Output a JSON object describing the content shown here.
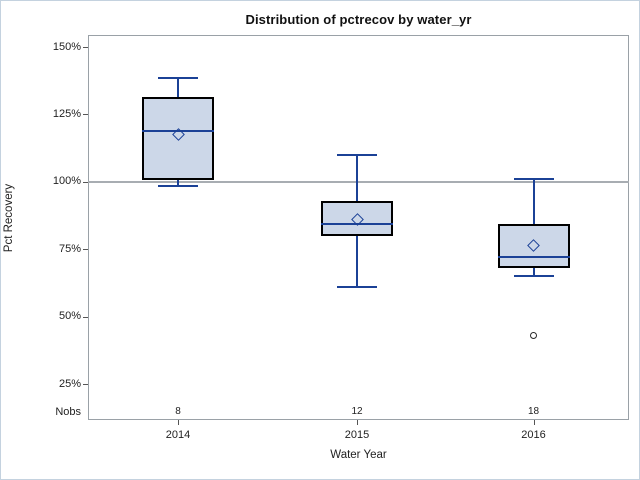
{
  "chart_data": {
    "type": "box",
    "title": "Distribution of pctrecov by water_yr",
    "xlabel": "Water Year",
    "ylabel": "Pct Recovery",
    "nobs_label": "Nobs",
    "categories": [
      "2014",
      "2015",
      "2016"
    ],
    "nobs": [
      "8",
      "12",
      "18"
    ],
    "y_ticks": [
      25,
      50,
      75,
      100,
      125,
      150
    ],
    "y_tick_labels": [
      "25%",
      "50%",
      "75%",
      "100%",
      "125%",
      "150%"
    ],
    "ylim": [
      12,
      155
    ],
    "grid": false,
    "legend": "none",
    "reference_line": 100,
    "series": [
      {
        "category": "2014",
        "n": 8,
        "whisker_low": 98.5,
        "q1": 100.5,
        "median": 119,
        "q3": 131.5,
        "whisker_high": 138.5,
        "mean": 117.5,
        "outliers": []
      },
      {
        "category": "2015",
        "n": 12,
        "whisker_low": 61,
        "q1": 80,
        "median": 84.5,
        "q3": 93,
        "whisker_high": 110,
        "mean": 86,
        "outliers": []
      },
      {
        "category": "2016",
        "n": 18,
        "whisker_low": 65,
        "q1": 68,
        "median": 72,
        "q3": 84.5,
        "whisker_high": 101,
        "mean": 76.5,
        "outliers": [
          43
        ]
      }
    ],
    "colors": {
      "box_fill": "#ccd7e8",
      "box_border": "#000000",
      "line": "#1b4196",
      "reference_line": "#a8adb2",
      "frame_border": "#9aa1a7",
      "outlier_stroke": "#2a2a2a",
      "text": "#222222"
    }
  }
}
